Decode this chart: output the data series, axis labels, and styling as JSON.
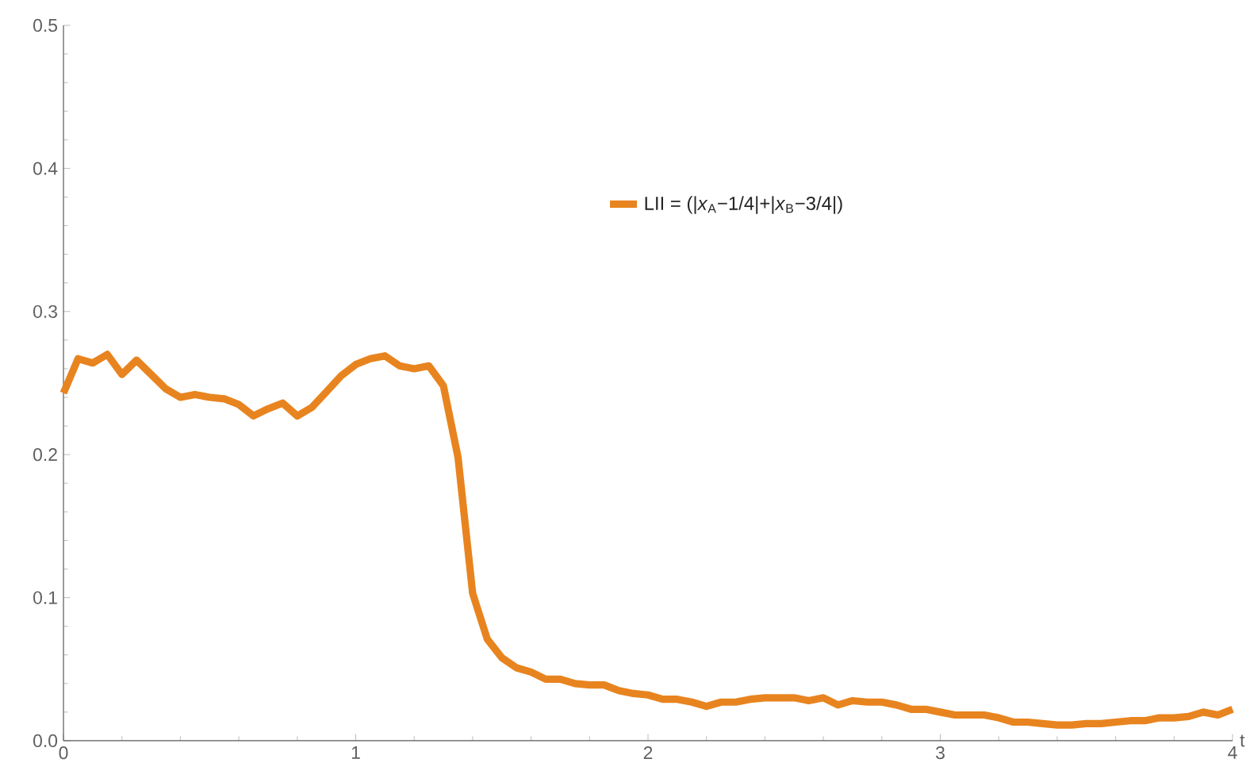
{
  "chart_data": {
    "type": "line",
    "xlabel": "t",
    "legend": "top right",
    "xlim": [
      0,
      4
    ],
    "ylim": [
      0,
      0.5
    ],
    "xticks": [
      0,
      1,
      2,
      3,
      4
    ],
    "yticks": [
      {
        "value": 0,
        "label": "0.0"
      },
      {
        "value": 0.1,
        "label": "0.1"
      },
      {
        "value": 0.2,
        "label": "0.2"
      },
      {
        "value": 0.3,
        "label": "0.3"
      },
      {
        "value": 0.4,
        "label": "0.4"
      },
      {
        "value": 0.5,
        "label": "0.5"
      }
    ],
    "series": [
      {
        "name": "LII =  (|*x*$_{A}$−1/4|+|*x*$_{B}$−3/4|)",
        "color": "#e8841f",
        "x": [
          0,
          0.05,
          0.1,
          0.15,
          0.2,
          0.25,
          0.3,
          0.35,
          0.4,
          0.45,
          0.5,
          0.55,
          0.6,
          0.65,
          0.7,
          0.75,
          0.8,
          0.85,
          0.9,
          0.95,
          1.0,
          1.05,
          1.1,
          1.15,
          1.2,
          1.25,
          1.3,
          1.35,
          1.4,
          1.45,
          1.5,
          1.55,
          1.6,
          1.65,
          1.7,
          1.75,
          1.8,
          1.85,
          1.9,
          1.95,
          2.0,
          2.05,
          2.1,
          2.15,
          2.2,
          2.25,
          2.3,
          2.35,
          2.4,
          2.45,
          2.5,
          2.55,
          2.6,
          2.65,
          2.7,
          2.75,
          2.8,
          2.85,
          2.9,
          2.95,
          3.0,
          3.05,
          3.1,
          3.15,
          3.2,
          3.25,
          3.3,
          3.35,
          3.4,
          3.45,
          3.5,
          3.55,
          3.6,
          3.65,
          3.7,
          3.75,
          3.8,
          3.85,
          3.9,
          3.95,
          4.0
        ],
        "values": [
          0.243,
          0.267,
          0.264,
          0.27,
          0.256,
          0.266,
          0.256,
          0.246,
          0.24,
          0.242,
          0.24,
          0.239,
          0.235,
          0.227,
          0.232,
          0.236,
          0.227,
          0.233,
          0.244,
          0.255,
          0.263,
          0.267,
          0.269,
          0.262,
          0.26,
          0.262,
          0.248,
          0.198,
          0.103,
          0.071,
          0.058,
          0.051,
          0.048,
          0.043,
          0.043,
          0.04,
          0.039,
          0.039,
          0.035,
          0.033,
          0.032,
          0.029,
          0.029,
          0.027,
          0.024,
          0.027,
          0.027,
          0.029,
          0.03,
          0.03,
          0.03,
          0.028,
          0.03,
          0.025,
          0.028,
          0.027,
          0.027,
          0.025,
          0.022,
          0.022,
          0.02,
          0.018,
          0.018,
          0.018,
          0.016,
          0.013,
          0.013,
          0.012,
          0.011,
          0.011,
          0.012,
          0.012,
          0.013,
          0.014,
          0.014,
          0.016,
          0.016,
          0.017,
          0.02,
          0.018,
          0.022
        ]
      }
    ]
  }
}
